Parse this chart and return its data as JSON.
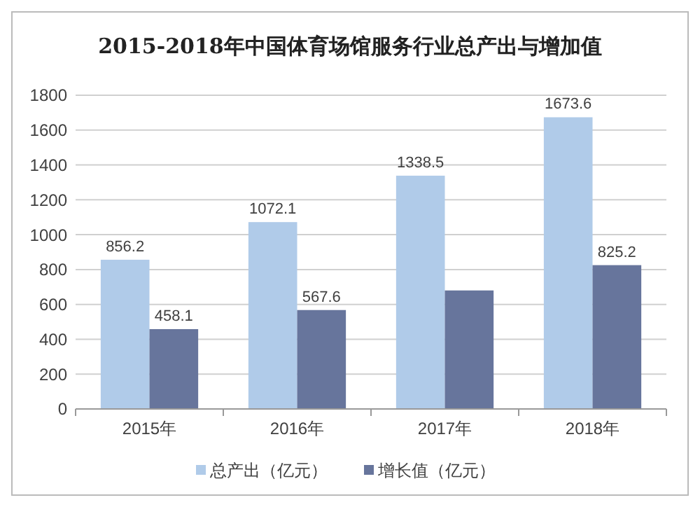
{
  "chart_data": {
    "type": "bar",
    "title": "2015-2018年中国体育场馆服务行业总产出与增加值",
    "categories": [
      "2015年",
      "2016年",
      "2017年",
      "2018年"
    ],
    "series": [
      {
        "name": "总产出（亿元）",
        "color": "#b0cbe9",
        "values": [
          856.2,
          1072.1,
          1338.5,
          1673.6
        ],
        "value_labels": [
          "856.2",
          "1072.1",
          "1338.5",
          "1673.6"
        ]
      },
      {
        "name": "增长值（亿元）",
        "color": "#67759c",
        "values": [
          458.1,
          567.6,
          680,
          825.2
        ],
        "value_labels": [
          "458.1",
          "567.6",
          null,
          "825.2"
        ]
      }
    ],
    "ylim": [
      0,
      1800
    ],
    "yticks": [
      0,
      200,
      400,
      600,
      800,
      1000,
      1200,
      1400,
      1600,
      1800
    ],
    "grid": "y",
    "legend": "bottom"
  }
}
